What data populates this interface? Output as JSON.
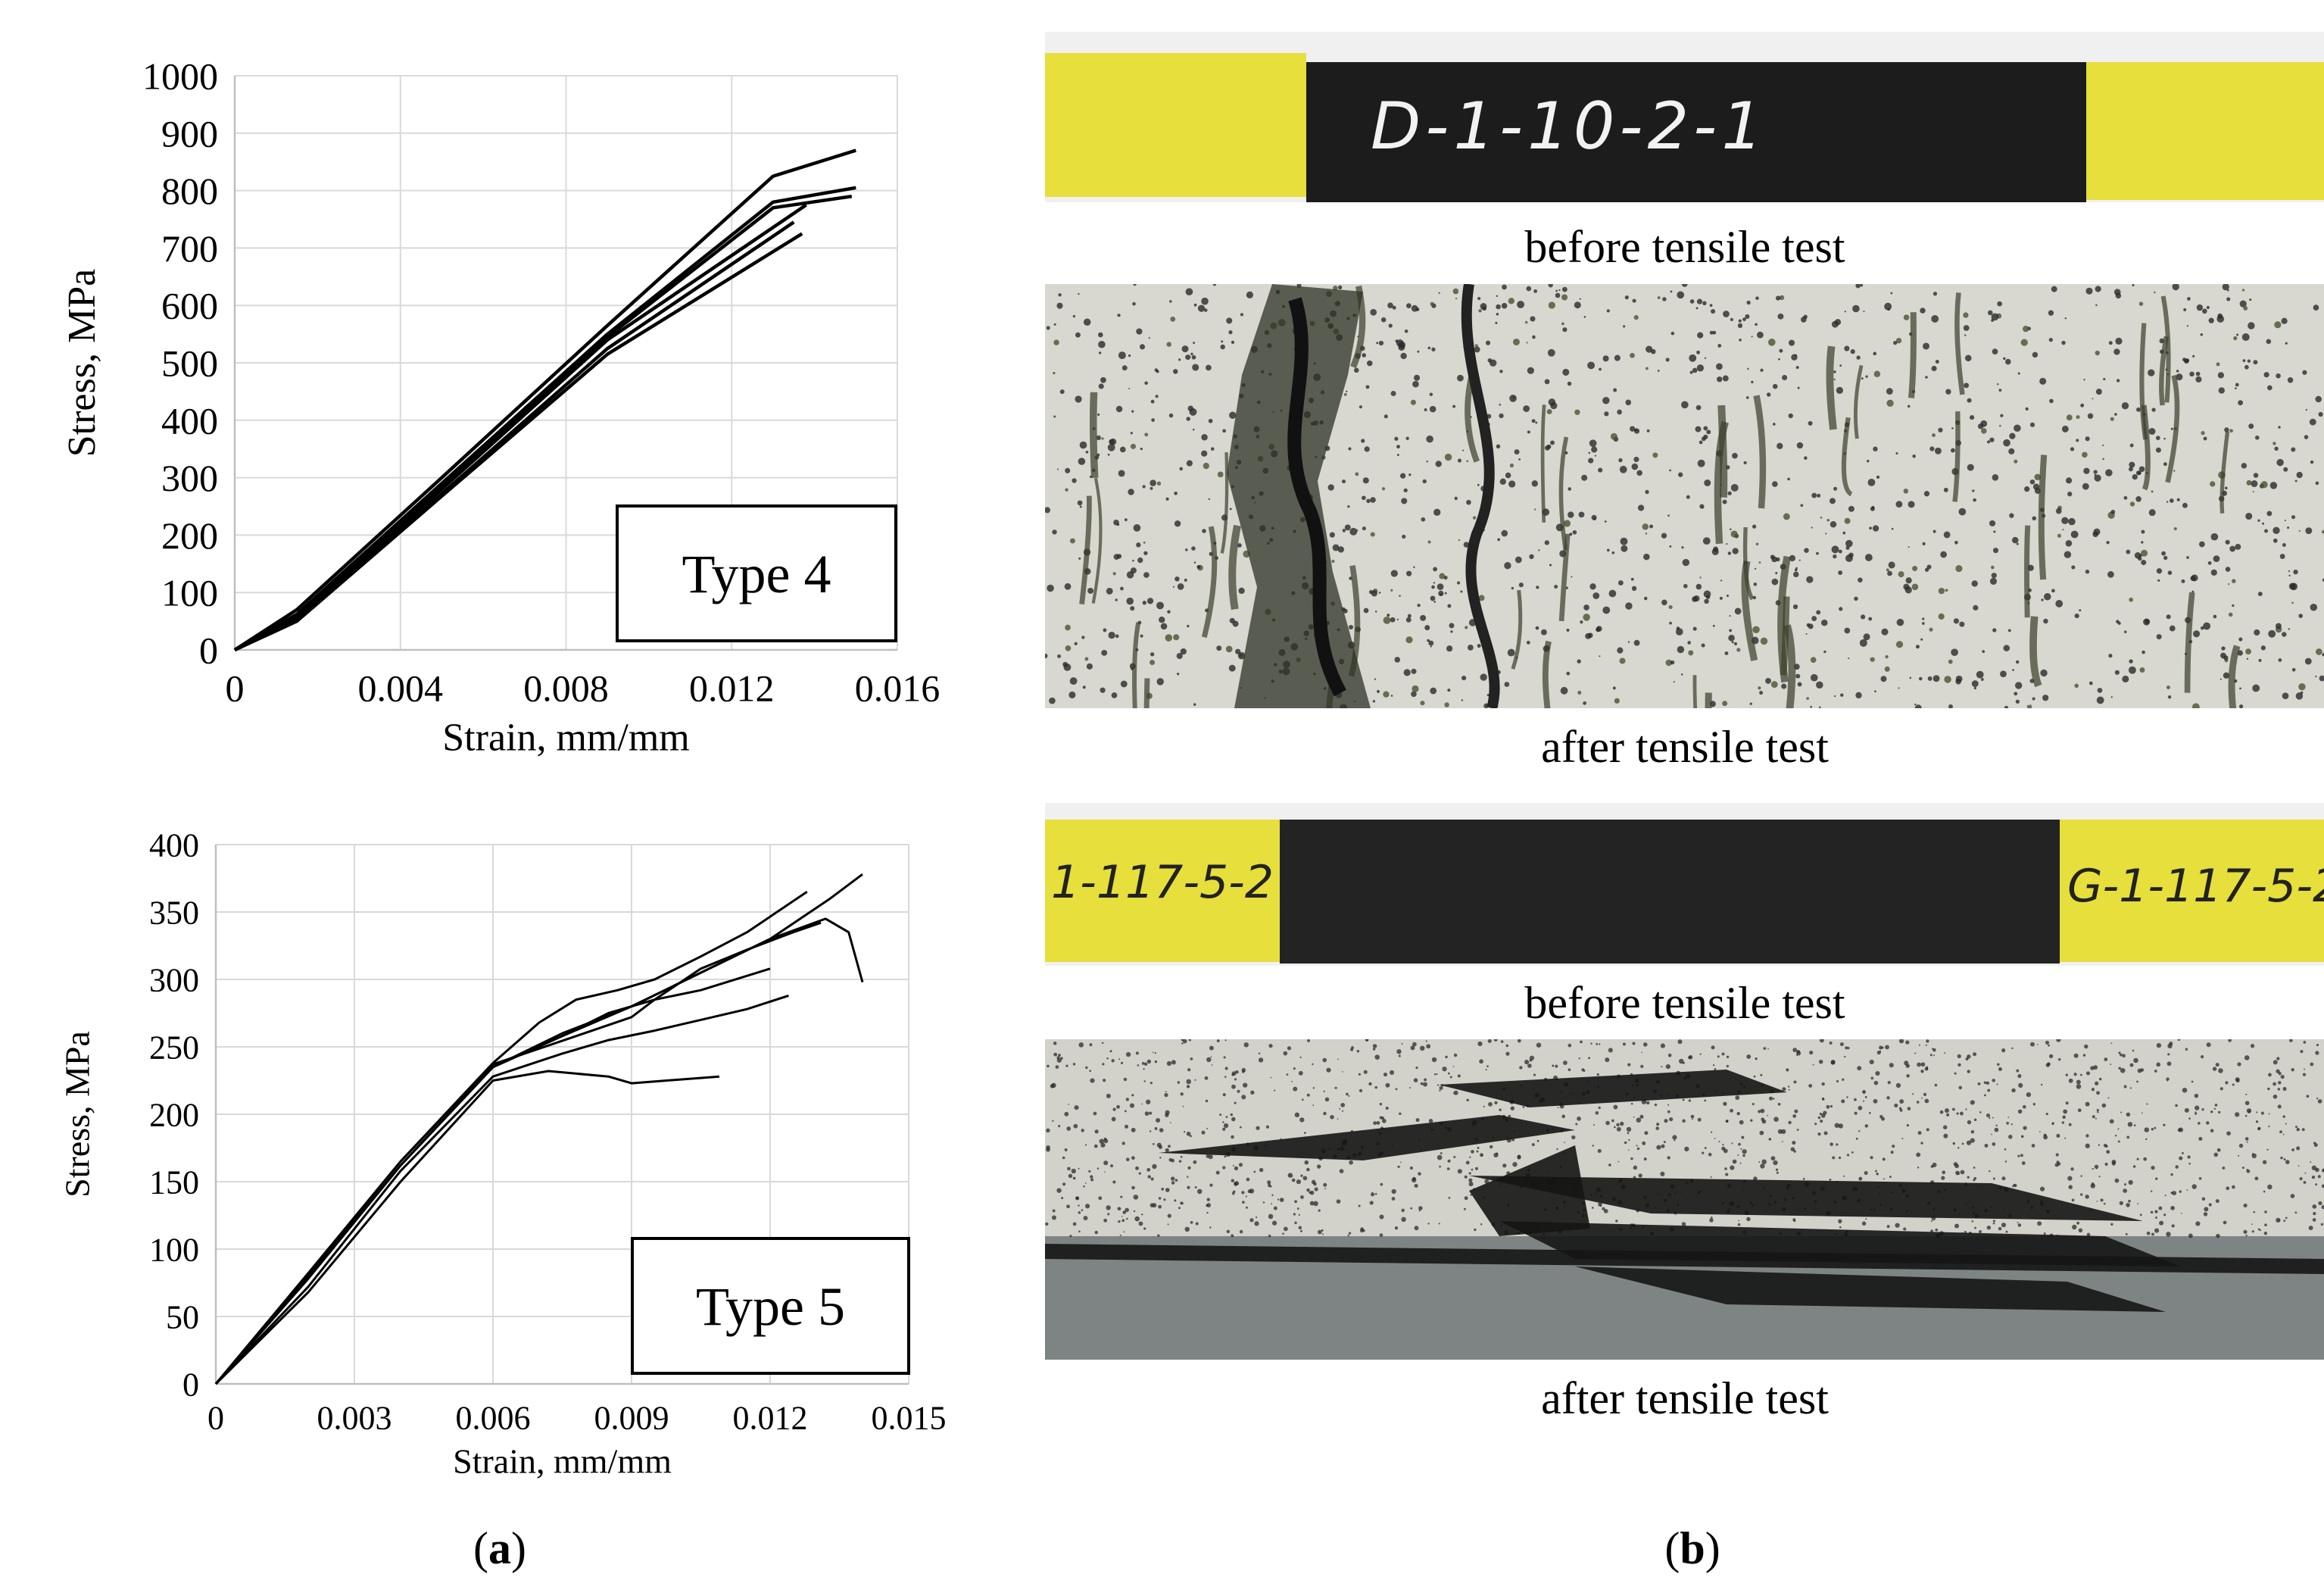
{
  "chart_data": [
    {
      "type": "line",
      "annotation": "Type 4",
      "xlabel": "Strain, mm/mm",
      "ylabel": "Stress, MPa",
      "xlim": [
        0,
        0.016
      ],
      "ylim": [
        0,
        1000
      ],
      "xticks": [
        0,
        0.004,
        0.008,
        0.012,
        0.016
      ],
      "xtick_labels": [
        "0",
        "0.004",
        "0.008",
        "0.012",
        "0.016"
      ],
      "yticks": [
        0,
        100,
        200,
        300,
        400,
        500,
        600,
        700,
        800,
        900,
        1000
      ],
      "ytick_labels": [
        "0",
        "100",
        "200",
        "300",
        "400",
        "500",
        "600",
        "700",
        "800",
        "900",
        "1000"
      ],
      "grid": true,
      "series": [
        {
          "x": [
            0,
            0.0015,
            0.005,
            0.009,
            0.013,
            0.015
          ],
          "y": [
            0,
            70,
            300,
            565,
            825,
            870
          ]
        },
        {
          "x": [
            0,
            0.0015,
            0.005,
            0.009,
            0.013,
            0.015
          ],
          "y": [
            0,
            62,
            290,
            550,
            780,
            805
          ]
        },
        {
          "x": [
            0,
            0.0015,
            0.005,
            0.009,
            0.013,
            0.0149
          ],
          "y": [
            0,
            60,
            285,
            545,
            770,
            790
          ]
        },
        {
          "x": [
            0,
            0.0015,
            0.005,
            0.009,
            0.0138
          ],
          "y": [
            0,
            60,
            280,
            540,
            775
          ]
        },
        {
          "x": [
            0,
            0.0015,
            0.005,
            0.009,
            0.0137
          ],
          "y": [
            0,
            50,
            268,
            515,
            725
          ]
        },
        {
          "x": [
            0,
            0.0015,
            0.005,
            0.009,
            0.0135
          ],
          "y": [
            0,
            55,
            272,
            525,
            745
          ]
        }
      ]
    },
    {
      "type": "line",
      "annotation": "Type 5",
      "xlabel": "Strain, mm/mm",
      "ylabel": "Stress, MPa",
      "xlim": [
        0,
        0.015
      ],
      "ylim": [
        0,
        400
      ],
      "xticks": [
        0,
        0.003,
        0.006,
        0.009,
        0.012,
        0.015
      ],
      "xtick_labels": [
        "0",
        "0.003",
        "0.006",
        "0.009",
        "0.012",
        "0.015"
      ],
      "yticks": [
        0,
        50,
        100,
        150,
        200,
        250,
        300,
        350,
        400
      ],
      "ytick_labels": [
        "0",
        "50",
        "100",
        "150",
        "200",
        "250",
        "300",
        "350",
        "400"
      ],
      "grid": true,
      "series": [
        {
          "x": [
            0,
            0.002,
            0.004,
            0.006,
            0.0072,
            0.0085,
            0.009,
            0.0109
          ],
          "y": [
            0,
            68,
            150,
            225,
            232,
            228,
            223,
            228
          ]
        },
        {
          "x": [
            0,
            0.002,
            0.004,
            0.006,
            0.0075,
            0.0085,
            0.0095,
            0.0105,
            0.0115,
            0.0124
          ],
          "y": [
            0,
            72,
            158,
            228,
            245,
            255,
            262,
            270,
            278,
            288
          ]
        },
        {
          "x": [
            0,
            0.002,
            0.004,
            0.006,
            0.0075,
            0.0085,
            0.0095,
            0.0105,
            0.012
          ],
          "y": [
            0,
            78,
            162,
            235,
            258,
            275,
            285,
            292,
            308
          ]
        },
        {
          "x": [
            0,
            0.002,
            0.004,
            0.006,
            0.0078,
            0.009,
            0.0095,
            0.0105,
            0.0115,
            0.0125,
            0.0131
          ],
          "y": [
            0,
            82,
            165,
            237,
            258,
            272,
            285,
            308,
            322,
            335,
            342
          ]
        },
        {
          "x": [
            0,
            0.002,
            0.004,
            0.006,
            0.007,
            0.0078,
            0.0087,
            0.0095,
            0.0105,
            0.0115,
            0.0128
          ],
          "y": [
            0,
            82,
            165,
            238,
            268,
            285,
            292,
            300,
            317,
            335,
            365
          ]
        },
        {
          "x": [
            0,
            0.002,
            0.004,
            0.006,
            0.0075,
            0.009,
            0.0105,
            0.012,
            0.0132,
            0.0137,
            0.014
          ],
          "y": [
            0,
            80,
            162,
            235,
            258,
            280,
            305,
            330,
            345,
            335,
            298
          ]
        },
        {
          "x": [
            0,
            0.002,
            0.004,
            0.006,
            0.0075,
            0.009,
            0.0105,
            0.012,
            0.0133,
            0.014
          ],
          "y": [
            0,
            80,
            162,
            235,
            260,
            280,
            305,
            330,
            360,
            378
          ]
        }
      ]
    }
  ],
  "panel_a_label": [
    "(",
    "a",
    ")"
  ],
  "panel_b_label": [
    "(",
    "b",
    ")"
  ],
  "photos": {
    "specimen1_id": "D-1-10-2-1",
    "specimen2_id_left": "1-117-5-2",
    "specimen2_id_right": "G-1-117-5-2",
    "caption_before_1": "before tensile test",
    "caption_after_1": "after tensile test",
    "caption_before_2": "before tensile test",
    "caption_after_2": "after tensile test",
    "colors": {
      "tab_yellow": "#e9e23a",
      "specimen_black": "#1c1c1c",
      "speckle_bg": "#d8d8d0"
    }
  }
}
